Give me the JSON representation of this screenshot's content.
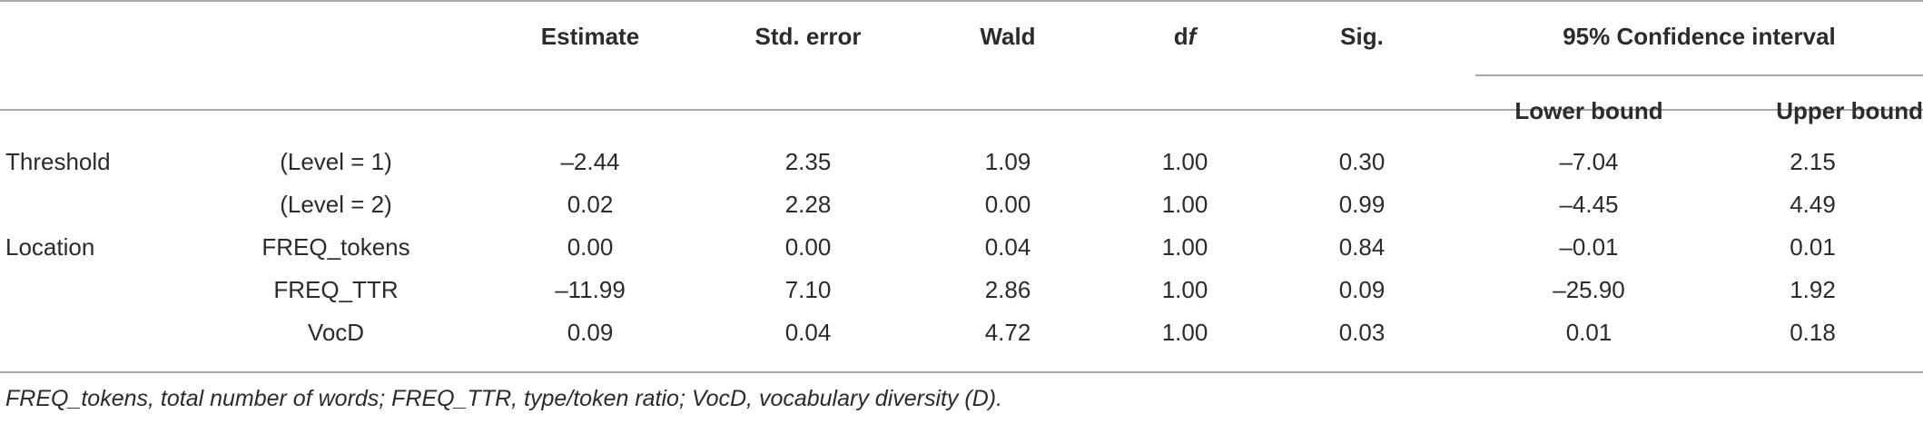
{
  "table": {
    "headers": {
      "estimate": "Estimate",
      "std_error": "Std. error",
      "wald": "Wald",
      "df_prefix": "d",
      "df_suffix": "f",
      "sig": "Sig.",
      "ci": "95% Confidence interval",
      "lower": "Lower bound",
      "upper": "Upper bound"
    },
    "rows": [
      {
        "group": "Threshold",
        "sub": "(Level = 1)",
        "estimate": "–2.44",
        "std_error": "2.35",
        "wald": "1.09",
        "df": "1.00",
        "sig": "0.30",
        "lower": "–7.04",
        "upper": "2.15"
      },
      {
        "group": "",
        "sub": "(Level = 2)",
        "estimate": "0.02",
        "std_error": "2.28",
        "wald": "0.00",
        "df": "1.00",
        "sig": "0.99",
        "lower": "–4.45",
        "upper": "4.49"
      },
      {
        "group": "Location",
        "sub": "FREQ_tokens",
        "estimate": "0.00",
        "std_error": "0.00",
        "wald": "0.04",
        "df": "1.00",
        "sig": "0.84",
        "lower": "–0.01",
        "upper": "0.01"
      },
      {
        "group": "",
        "sub": "FREQ_TTR",
        "estimate": "–11.99",
        "std_error": "7.10",
        "wald": "2.86",
        "df": "1.00",
        "sig": "0.09",
        "lower": "–25.90",
        "upper": "1.92"
      },
      {
        "group": "",
        "sub": "VocD",
        "estimate": "0.09",
        "std_error": "0.04",
        "wald": "4.72",
        "df": "1.00",
        "sig": "0.03",
        "lower": "0.01",
        "upper": "0.18"
      }
    ],
    "footnote": "FREQ_tokens, total number of words; FREQ_TTR, type/token ratio; VocD, vocabulary diversity (D)."
  }
}
